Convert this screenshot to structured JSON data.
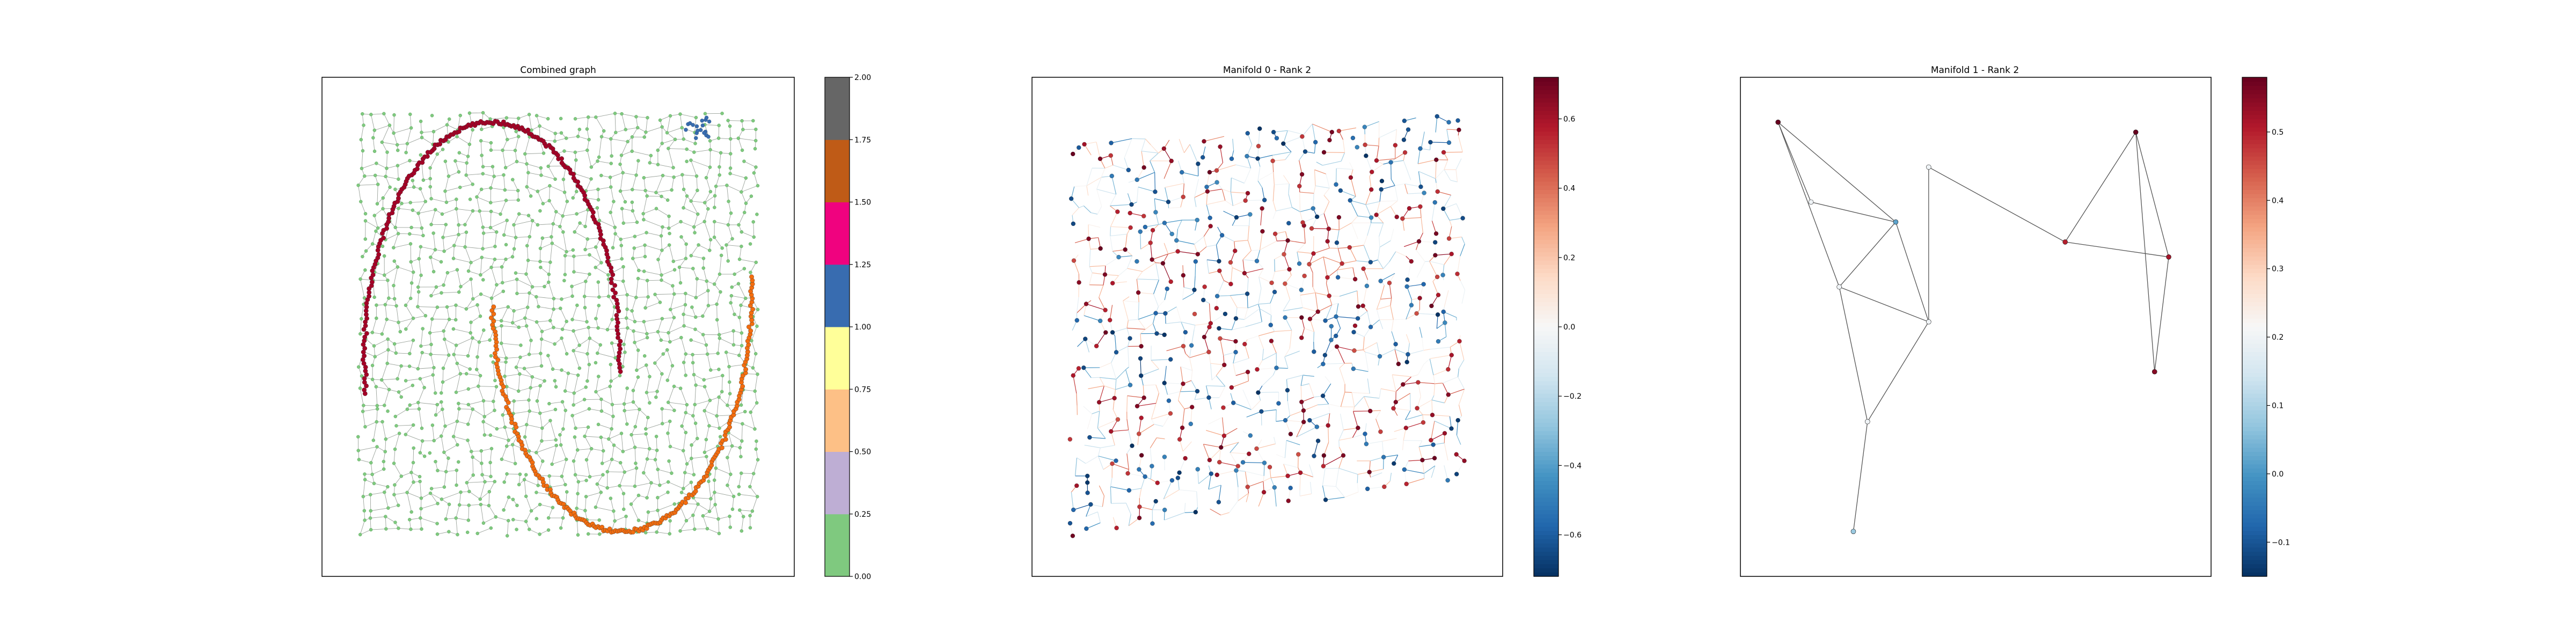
{
  "chart_data": [
    {
      "type": "scatter",
      "title": "Combined graph",
      "xlabel": "",
      "ylabel": "",
      "grid": false,
      "colormap": "Accent",
      "colorbar": {
        "range": [
          0,
          2
        ],
        "ticks": [
          "0.00",
          "0.25",
          "0.50",
          "0.75",
          "1.00",
          "1.25",
          "1.50",
          "1.75",
          "2.00"
        ],
        "colors": [
          "#7fc97f",
          "#beaed4",
          "#fdc086",
          "#ffff99",
          "#386cb0",
          "#f0027f",
          "#bf5b17",
          "#666666"
        ]
      },
      "series": [
        {
          "label_value": 0.0,
          "color": "#7fc97f",
          "shape": "square-sheet",
          "x_range": [
            0.08,
            0.92
          ],
          "y_range": [
            0.09,
            0.92
          ]
        },
        {
          "label_value": 2.0,
          "color": "#a50026",
          "shape": "arc",
          "x_range": [
            0.09,
            0.63
          ],
          "y_range": [
            0.37,
            0.91
          ]
        },
        {
          "label_value": 1.75,
          "color": "#f46d0f",
          "shape": "arc",
          "x_range": [
            0.36,
            0.91
          ],
          "y_range": [
            0.09,
            0.64
          ]
        },
        {
          "label_value": 1.0,
          "color": "#386cb0",
          "shape": "cluster",
          "x_range": [
            0.77,
            0.82
          ],
          "y_range": [
            0.88,
            0.92
          ]
        }
      ]
    },
    {
      "type": "scatter",
      "title": "Manifold 0 - Rank 2",
      "xlabel": "",
      "ylabel": "",
      "grid": false,
      "colormap": "RdBu_r",
      "colorbar": {
        "range": [
          -0.72,
          0.72
        ],
        "ticks": [
          "−0.6",
          "−0.4",
          "−0.2",
          "0.0",
          "0.2",
          "0.4",
          "0.6"
        ]
      },
      "points_summary": "about 1000 graph nodes forming a square sheet, values between -0.72 and 0.72"
    },
    {
      "type": "scatter",
      "title": "Manifold 1 - Rank 2",
      "xlabel": "",
      "ylabel": "",
      "grid": false,
      "colormap": "RdBu_r",
      "colorbar": {
        "range": [
          -0.15,
          0.58
        ],
        "ticks": [
          "−0.1",
          "0.0",
          "0.1",
          "0.2",
          "0.3",
          "0.4",
          "0.5"
        ]
      },
      "nodes": [
        {
          "id": 0,
          "x": 0.08,
          "y": 0.91,
          "v": 0.58
        },
        {
          "id": 1,
          "x": 0.15,
          "y": 0.75,
          "v": 0.2
        },
        {
          "id": 2,
          "x": 0.33,
          "y": 0.71,
          "v": 0.02
        },
        {
          "id": 3,
          "x": 0.21,
          "y": 0.58,
          "v": 0.2
        },
        {
          "id": 4,
          "x": 0.4,
          "y": 0.82,
          "v": 0.2
        },
        {
          "id": 5,
          "x": 0.4,
          "y": 0.51,
          "v": 0.2
        },
        {
          "id": 6,
          "x": 0.27,
          "y": 0.31,
          "v": 0.2
        },
        {
          "id": 7,
          "x": 0.24,
          "y": 0.09,
          "v": 0.08
        },
        {
          "id": 8,
          "x": 0.69,
          "y": 0.67,
          "v": 0.5
        },
        {
          "id": 9,
          "x": 0.84,
          "y": 0.89,
          "v": 0.58
        },
        {
          "id": 10,
          "x": 0.91,
          "y": 0.64,
          "v": 0.52
        },
        {
          "id": 11,
          "x": 0.88,
          "y": 0.41,
          "v": 0.55
        }
      ],
      "edges": [
        [
          0,
          1
        ],
        [
          0,
          2
        ],
        [
          0,
          3
        ],
        [
          1,
          2
        ],
        [
          2,
          3
        ],
        [
          2,
          5
        ],
        [
          3,
          5
        ],
        [
          3,
          6
        ],
        [
          5,
          4
        ],
        [
          4,
          8
        ],
        [
          8,
          9
        ],
        [
          8,
          10
        ],
        [
          9,
          10
        ],
        [
          9,
          11
        ],
        [
          10,
          11
        ],
        [
          6,
          7
        ],
        [
          6,
          5
        ]
      ]
    }
  ]
}
